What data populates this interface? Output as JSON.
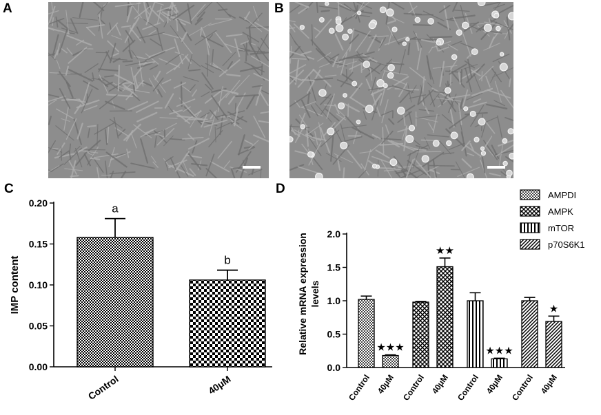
{
  "panels": {
    "a": "A",
    "b": "B",
    "c": "C",
    "d": "D"
  },
  "chart_data": [
    {
      "type": "bar",
      "panel": "C",
      "categories": [
        "Control",
        "40μM"
      ],
      "values": [
        0.158,
        0.106
      ],
      "errors": [
        0.023,
        0.012
      ],
      "annotations": [
        "a",
        "b"
      ],
      "ylabel": "IMP content",
      "ylim": [
        0,
        0.2
      ],
      "yticks": [
        "0.00",
        "0.05",
        "0.10",
        "0.15",
        "0.20"
      ],
      "grid": false,
      "legend": "none"
    },
    {
      "type": "bar",
      "panel": "D",
      "ylabel": "Relative mRNA expression levels",
      "ylim": [
        0,
        2.0
      ],
      "yticks": [
        "0.0",
        "0.5",
        "1.0",
        "1.5",
        "2.0"
      ],
      "legend": "top-right",
      "grid": false,
      "series": [
        {
          "name": "AMPDI",
          "categories": [
            "Control",
            "40μM"
          ],
          "values": [
            1.02,
            0.18
          ],
          "errors": [
            0.05,
            0.01
          ],
          "annotations": [
            "",
            "★★★"
          ]
        },
        {
          "name": "AMPK",
          "categories": [
            "Control",
            "40μM"
          ],
          "values": [
            0.98,
            1.51
          ],
          "errors": [
            0.01,
            0.13
          ],
          "annotations": [
            "",
            "★★"
          ]
        },
        {
          "name": "mTOR",
          "categories": [
            "Control",
            "40μM"
          ],
          "values": [
            1.0,
            0.13
          ],
          "errors": [
            0.12,
            0.01
          ],
          "annotations": [
            "",
            "★★★"
          ]
        },
        {
          "name": "p70S6K1",
          "categories": [
            "Control",
            "40μM"
          ],
          "values": [
            1.0,
            0.69
          ],
          "errors": [
            0.05,
            0.08
          ],
          "annotations": [
            "",
            "★"
          ]
        }
      ]
    }
  ]
}
